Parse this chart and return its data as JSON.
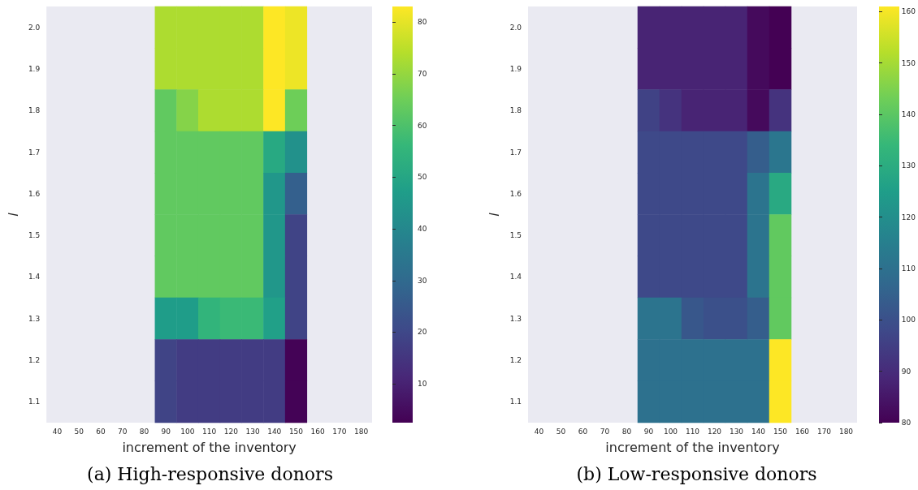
{
  "chart_data": [
    {
      "type": "heatmap",
      "xlabel": "increment of the inventory",
      "ylabel": "l",
      "annotations": [
        "(a) High-responsive donors"
      ],
      "categories": [
        "40",
        "50",
        "60",
        "70",
        "80",
        "90",
        "100",
        "110",
        "120",
        "130",
        "140",
        "150",
        "160",
        "170",
        "180"
      ],
      "y_categories": [
        "2.0",
        "1.9",
        "1.8",
        "1.7",
        "1.6",
        "1.5",
        "1.4",
        "1.3",
        "1.2",
        "1.1"
      ],
      "cells": [
        [
          null,
          null,
          null,
          null,
          null,
          73,
          73,
          73,
          73,
          73,
          83,
          81,
          null,
          null,
          null
        ],
        [
          null,
          null,
          null,
          null,
          null,
          73,
          73,
          73,
          73,
          73,
          83,
          81,
          null,
          null,
          null
        ],
        [
          null,
          null,
          null,
          null,
          null,
          63,
          68,
          73,
          73,
          73,
          83,
          65,
          null,
          null,
          null
        ],
        [
          null,
          null,
          null,
          null,
          null,
          63,
          63,
          63,
          63,
          63,
          51,
          43,
          null,
          null,
          null
        ],
        [
          null,
          null,
          null,
          null,
          null,
          63,
          63,
          63,
          63,
          63,
          45,
          27,
          null,
          null,
          null
        ],
        [
          null,
          null,
          null,
          null,
          null,
          63,
          63,
          63,
          63,
          63,
          45,
          19,
          null,
          null,
          null
        ],
        [
          null,
          null,
          null,
          null,
          null,
          63,
          63,
          63,
          63,
          63,
          45,
          19,
          null,
          null,
          null
        ],
        [
          null,
          null,
          null,
          null,
          null,
          47,
          47,
          55,
          57,
          57,
          48,
          19,
          null,
          null,
          null
        ],
        [
          null,
          null,
          null,
          null,
          null,
          19,
          17,
          17,
          17,
          17,
          17,
          3,
          null,
          null,
          null
        ],
        [
          null,
          null,
          null,
          null,
          null,
          19,
          17,
          17,
          17,
          17,
          17,
          3,
          null,
          null,
          null
        ]
      ],
      "clim": [
        2.5,
        83
      ],
      "cticks": [
        10,
        20,
        30,
        40,
        50,
        60,
        70,
        80
      ]
    },
    {
      "type": "heatmap",
      "xlabel": "increment of the inventory",
      "ylabel": "l",
      "annotations": [
        "(b) Low-responsive donors"
      ],
      "categories": [
        "40",
        "50",
        "60",
        "70",
        "80",
        "90",
        "100",
        "110",
        "120",
        "130",
        "140",
        "150",
        "160",
        "170",
        "180"
      ],
      "y_categories": [
        "2.0",
        "1.9",
        "1.8",
        "1.7",
        "1.6",
        "1.5",
        "1.4",
        "1.3",
        "1.2",
        "1.1"
      ],
      "cells": [
        [
          null,
          null,
          null,
          null,
          null,
          88,
          88,
          88,
          88,
          88,
          82,
          80,
          null,
          null,
          null
        ],
        [
          null,
          null,
          null,
          null,
          null,
          88,
          88,
          88,
          88,
          88,
          82,
          80,
          null,
          null,
          null
        ],
        [
          null,
          null,
          null,
          null,
          null,
          96,
          92,
          88,
          88,
          88,
          82,
          92,
          null,
          null,
          null
        ],
        [
          null,
          null,
          null,
          null,
          null,
          98,
          98,
          98,
          98,
          98,
          104,
          112,
          null,
          null,
          null
        ],
        [
          null,
          null,
          null,
          null,
          null,
          98,
          98,
          98,
          98,
          98,
          111,
          129,
          null,
          null,
          null
        ],
        [
          null,
          null,
          null,
          null,
          null,
          98,
          98,
          98,
          98,
          98,
          111,
          141,
          null,
          null,
          null
        ],
        [
          null,
          null,
          null,
          null,
          null,
          98,
          98,
          98,
          98,
          98,
          111,
          141,
          null,
          null,
          null
        ],
        [
          null,
          null,
          null,
          null,
          null,
          111,
          111,
          102,
          100,
          100,
          104,
          141,
          null,
          null,
          null
        ],
        [
          null,
          null,
          null,
          null,
          null,
          110,
          110,
          110,
          110,
          110,
          110,
          161,
          null,
          null,
          null
        ],
        [
          null,
          null,
          null,
          null,
          null,
          110,
          110,
          110,
          110,
          110,
          110,
          161,
          null,
          null,
          null
        ]
      ],
      "clim": [
        80,
        161
      ],
      "cticks": [
        80,
        90,
        100,
        110,
        120,
        130,
        140,
        150,
        160
      ]
    }
  ]
}
